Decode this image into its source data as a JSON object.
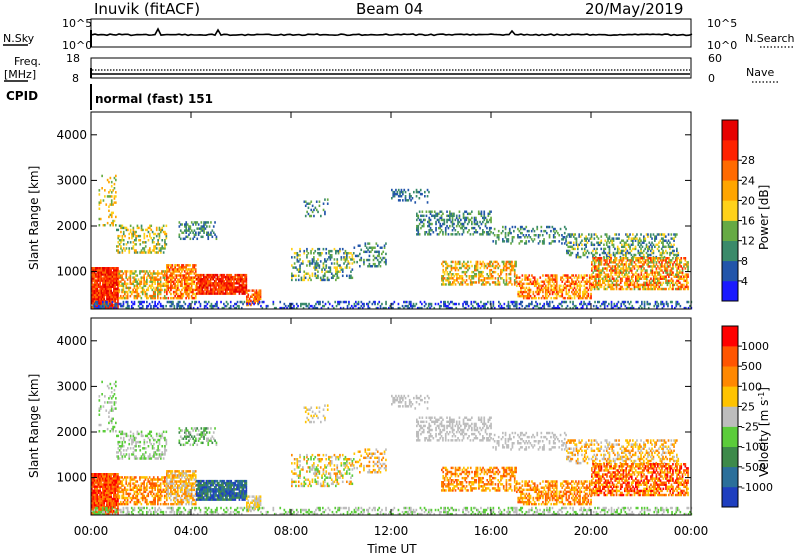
{
  "header": {
    "station": "Inuvik (fitACF)",
    "beam": "Beam 04",
    "date": "20/May/2019"
  },
  "nsky_panel": {
    "left_label": "N.Sky",
    "left_ticks": [
      "10^5",
      "10^0"
    ],
    "right_ticks": [
      "10^5",
      "10^0"
    ],
    "right_label": "N.Search"
  },
  "freq_panel": {
    "left_label_1": "Freq.",
    "left_label_2": "[MHz]",
    "left_ticks": [
      "18",
      "8"
    ],
    "right_ticks": [
      "60",
      "0"
    ],
    "right_label": "Nave"
  },
  "cpid_panel": {
    "label": "CPID",
    "mode_text": "normal (fast) 151"
  },
  "chart_data": [
    {
      "type": "heatmap",
      "name": "power",
      "ylabel": "Slant Range [km]",
      "yticks": [
        1000,
        2000,
        3000,
        4000
      ],
      "ylim": [
        180,
        4500
      ],
      "colorbar_label": "Power [dB]",
      "colorbar_ticks": [
        "4",
        "8",
        "12",
        "16",
        "20",
        "24",
        "28"
      ],
      "colorbar_colors": [
        "#1a1aff",
        "#2255aa",
        "#3a8a6a",
        "#66aa44",
        "#ffd21a",
        "#ffa500",
        "#ff6a00",
        "#ff2200",
        "#e60000"
      ],
      "background": "#ffffff"
    },
    {
      "type": "heatmap",
      "name": "velocity",
      "ylabel": "Slant Range [km]",
      "yticks": [
        1000,
        2000,
        3000,
        4000
      ],
      "ylim": [
        180,
        4500
      ],
      "colorbar_label": "Velocity [m s",
      "colorbar_label_sup": "-1",
      "colorbar_label_end": "]",
      "colorbar_ticks": [
        "1000",
        "500",
        "100",
        "25",
        "-25",
        "-100",
        "-500",
        "-1000"
      ],
      "colorbar_colors": [
        "#1f3fbf",
        "#2b6f9a",
        "#3d8a4a",
        "#5bcc3a",
        "#bdbdbd",
        "#ffc300",
        "#ff8800",
        "#ff5500",
        "#ff0000"
      ],
      "background": "#ffffff"
    }
  ],
  "x_axis": {
    "ticks": [
      "00:00",
      "04:00",
      "08:00",
      "12:00",
      "16:00",
      "20:00",
      "00:00"
    ],
    "label": "Time UT"
  }
}
